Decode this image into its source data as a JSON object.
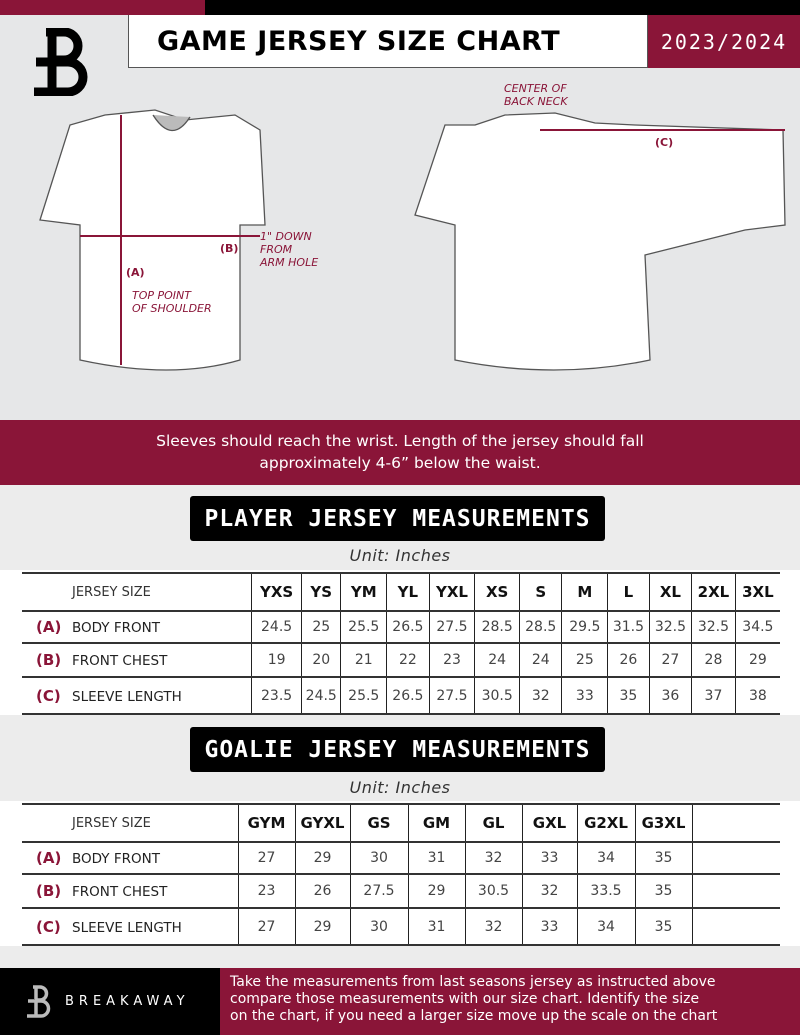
{
  "header": {
    "title": "GAME JERSEY SIZE CHART",
    "season": "2023/2024",
    "logo_letter": "B"
  },
  "diagram": {
    "center_back_neck": [
      "CENTER OF",
      "BACK NECK"
    ],
    "label_c": "(C)",
    "label_b": "(B)",
    "label_a": "(A)",
    "arm_hole": [
      "1\" DOWN",
      "FROM",
      "ARM HOLE"
    ],
    "shoulder": [
      "TOP POINT",
      "OF SHOULDER"
    ]
  },
  "band": {
    "line1": "Sleeves should reach the wrist. Length of the jersey should fall",
    "line2": "approximately 4-6” below the waist."
  },
  "player": {
    "title": "PLAYER JERSEY MEASUREMENTS",
    "unit": "Unit: Inches",
    "size_label": "JERSEY SIZE",
    "sizes": [
      "YXS",
      "YS",
      "YM",
      "YL",
      "YXL",
      "XS",
      "S",
      "M",
      "L",
      "XL",
      "2XL",
      "3XL"
    ],
    "rows": [
      {
        "letter": "(A)",
        "name": "BODY FRONT",
        "values": [
          "24.5",
          "25",
          "25.5",
          "26.5",
          "27.5",
          "28.5",
          "28.5",
          "29.5",
          "31.5",
          "32.5",
          "32.5",
          "34.5"
        ]
      },
      {
        "letter": "(B)",
        "name": "FRONT CHEST",
        "values": [
          "19",
          "20",
          "21",
          "22",
          "23",
          "24",
          "24",
          "25",
          "26",
          "27",
          "28",
          "29"
        ]
      },
      {
        "letter": "(C)",
        "name": "SLEEVE LENGTH",
        "values": [
          "23.5",
          "24.5",
          "25.5",
          "26.5",
          "27.5",
          "30.5",
          "32",
          "33",
          "35",
          "36",
          "37",
          "38"
        ]
      }
    ]
  },
  "goalie": {
    "title": "GOALIE JERSEY MEASUREMENTS",
    "unit": "Unit: Inches",
    "size_label": "JERSEY SIZE",
    "sizes": [
      "GYM",
      "GYXL",
      "GS",
      "GM",
      "GL",
      "GXL",
      "G2XL",
      "G3XL",
      ""
    ],
    "rows": [
      {
        "letter": "(A)",
        "name": "BODY FRONT",
        "values": [
          "27",
          "29",
          "30",
          "31",
          "32",
          "33",
          "34",
          "35",
          ""
        ]
      },
      {
        "letter": "(B)",
        "name": "FRONT CHEST",
        "values": [
          "23",
          "26",
          "27.5",
          "29",
          "30.5",
          "32",
          "33.5",
          "35",
          ""
        ]
      },
      {
        "letter": "(C)",
        "name": "SLEEVE LENGTH",
        "values": [
          "27",
          "29",
          "30",
          "31",
          "32",
          "33",
          "34",
          "35",
          ""
        ]
      }
    ]
  },
  "footer": {
    "brand": "BREAKAWAY",
    "lines": [
      "Take the measurements from last seasons jersey as instructed above",
      "compare those measurements  with our size chart. Identify the size",
      "on the chart, if you need a larger size move up the scale on the chart"
    ]
  },
  "colors": {
    "accent": "#8a1538",
    "dark": "#000000"
  }
}
